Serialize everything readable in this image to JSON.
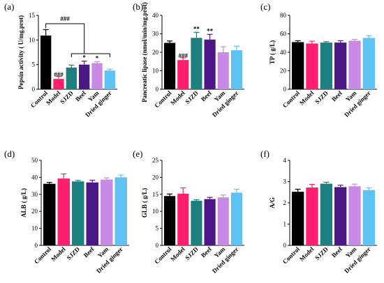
{
  "colors": {
    "Control": "#000000",
    "Model": "#ff1f6e",
    "SJZD": "#1c8080",
    "Beef": "#4b1686",
    "Yam": "#c98ae6",
    "Dried ginger": "#5ec3f2"
  },
  "chart_data": [
    {
      "panel": "(a)",
      "type": "bar",
      "categories": [
        "Control",
        "Model",
        "SJZD",
        "Beef",
        "Yam",
        "Dried ginger"
      ],
      "ylabel": "Pepsin activity ( U/mg.prot)",
      "ylim": [
        0,
        15
      ],
      "yticks": [
        "0",
        "5",
        "10",
        "15"
      ],
      "values": [
        10.9,
        2.1,
        4.4,
        5.0,
        5.3,
        3.8
      ],
      "errors": [
        1.2,
        0.5,
        0.5,
        0.7,
        0.3,
        0.3
      ],
      "annotations": [
        "",
        "###",
        "",
        "*",
        "*",
        ""
      ],
      "bracket_label": "###"
    },
    {
      "panel": "(b)",
      "type": "bar",
      "categories": [
        "Control",
        "Model",
        "SJZD",
        "Beef",
        "Yam",
        "Dried ginger"
      ],
      "ylabel": "Pancreatic lipase (nmol/min/mg.prot)",
      "ylim": [
        0,
        40
      ],
      "yticks": [
        "0",
        "10",
        "20",
        "30",
        "40"
      ],
      "values": [
        25.1,
        15.8,
        27.8,
        26.9,
        20.0,
        21.1
      ],
      "errors": [
        1.0,
        1.2,
        3.0,
        2.8,
        3.0,
        2.2
      ],
      "annotations": [
        "",
        "###",
        "**",
        "**",
        "",
        ""
      ]
    },
    {
      "panel": "(c)",
      "type": "bar",
      "categories": [
        "Control",
        "Model",
        "SJZD",
        "Beef",
        "Yam",
        "Dried ginger"
      ],
      "ylabel": "TP ( g/L)",
      "ylim": [
        0,
        80
      ],
      "yticks": [
        "0",
        "20",
        "40",
        "60",
        "80"
      ],
      "values": [
        51,
        49.5,
        50.5,
        50.5,
        52.5,
        55.5
      ],
      "errors": [
        1.5,
        2.5,
        1.0,
        2.0,
        1.5,
        2.5
      ],
      "annotations": [
        "",
        "",
        "",
        "",
        "",
        ""
      ]
    },
    {
      "panel": "(d)",
      "type": "bar",
      "categories": [
        "Control",
        "Model",
        "SJZD",
        "Beef",
        "Yam",
        "Dried ginger"
      ],
      "ylabel": "ALB ( g/L)",
      "ylim": [
        0,
        50
      ],
      "yticks": [
        "0",
        "10",
        "20",
        "30",
        "40",
        "50"
      ],
      "values": [
        36.2,
        39.3,
        37.6,
        37.0,
        38.7,
        40.0
      ],
      "errors": [
        0.8,
        2.7,
        0.6,
        1.3,
        1.0,
        1.4
      ],
      "annotations": [
        "",
        "",
        "",
        "",
        "",
        ""
      ]
    },
    {
      "panel": "(e)",
      "type": "bar",
      "categories": [
        "Control",
        "Model",
        "SJZD",
        "Beef",
        "Yam",
        "Dried ginger"
      ],
      "ylabel": "GLB ( g/L)",
      "ylim": [
        0,
        25
      ],
      "yticks": [
        "0",
        "5",
        "10",
        "15",
        "20",
        "25"
      ],
      "values": [
        14.5,
        15.2,
        13.1,
        13.6,
        14.1,
        15.5
      ],
      "errors": [
        0.6,
        1.7,
        0.3,
        0.5,
        0.7,
        1.0
      ],
      "annotations": [
        "",
        "",
        "",
        "",
        "",
        ""
      ]
    },
    {
      "panel": "(f)",
      "type": "bar",
      "categories": [
        "Control",
        "Model",
        "SJZD",
        "Beef",
        "Yam",
        "Dried ginger"
      ],
      "ylabel": "A/G",
      "ylim": [
        0,
        4
      ],
      "yticks": [
        "0",
        "1",
        "2",
        "3",
        "4"
      ],
      "values": [
        2.52,
        2.72,
        2.9,
        2.74,
        2.78,
        2.6
      ],
      "errors": [
        0.12,
        0.15,
        0.07,
        0.09,
        0.1,
        0.1
      ],
      "annotations": [
        "",
        "",
        "",
        "",
        "",
        ""
      ]
    }
  ]
}
